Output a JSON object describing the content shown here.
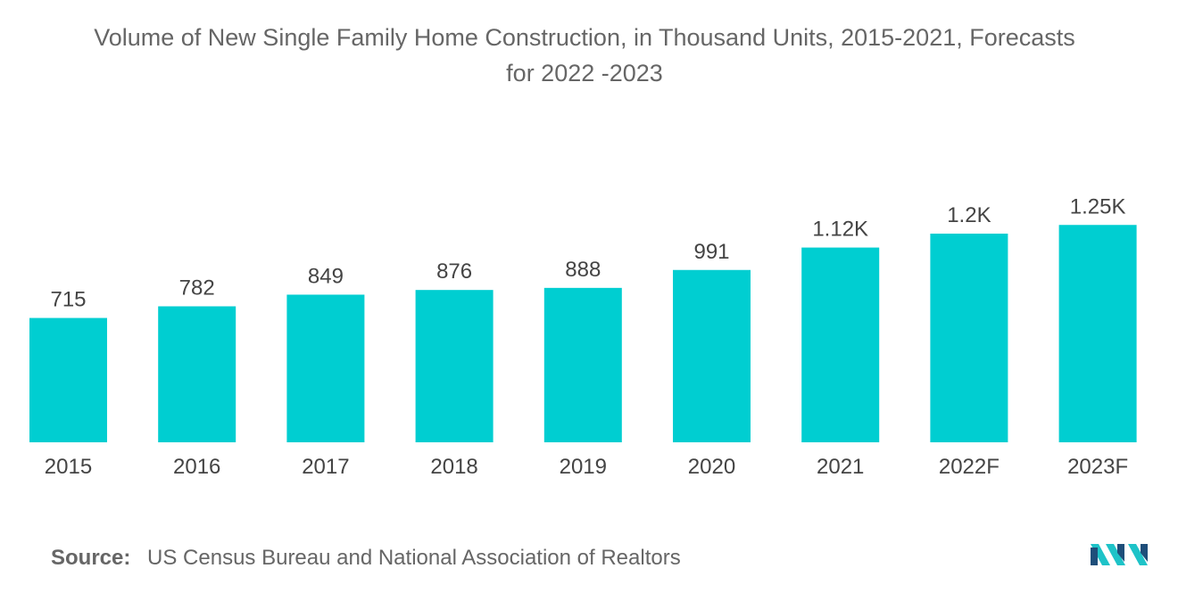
{
  "title_lines": [
    "Volume of New Single Family Home Construction, in Thousand Units, 2015-2021, Forecasts",
    "for 2022 -2023"
  ],
  "source": {
    "label": "Source:",
    "text": "US Census Bureau and National Association of Realtors"
  },
  "colors": {
    "bar": "#00CED1",
    "label_text": "#444444",
    "logo_dark": "#1E4E7A",
    "logo_teal": "#1EC3C8"
  },
  "logo_icon": "mordor-logo-icon",
  "chart_data": {
    "type": "bar",
    "title": "Volume of New Single Family Home Construction, in Thousand Units, 2015-2021, Forecasts for 2022 -2023",
    "categories": [
      "2015",
      "2016",
      "2017",
      "2018",
      "2019",
      "2020",
      "2021",
      "2022F",
      "2023F"
    ],
    "values": [
      715,
      782,
      849,
      876,
      888,
      991,
      1120,
      1200,
      1250
    ],
    "data_labels": [
      "715",
      "782",
      "849",
      "876",
      "888",
      "991",
      "1.12K",
      "1.2K",
      "1.25K"
    ],
    "xlabel": "",
    "ylabel": "",
    "ylim": [
      0,
      1500
    ],
    "grid": false,
    "legend": "none"
  }
}
